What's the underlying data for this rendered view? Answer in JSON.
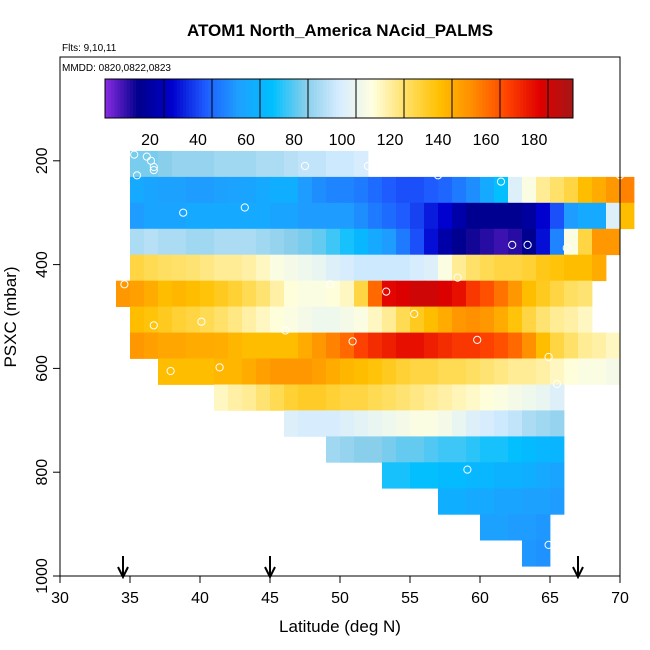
{
  "chart_data": {
    "type": "heatmap",
    "title": "ATOM1 North_America NAcid_PALMS",
    "flights_label": "Flts: 9,10,11",
    "dates_label": "MMDD: 0820,0822,0823",
    "xlabel": "Latitude (deg N)",
    "ylabel": "PSXC (mbar)",
    "xlim": [
      30,
      70
    ],
    "ylim": [
      1000,
      0
    ],
    "x_ticks": [
      30,
      35,
      40,
      45,
      50,
      55,
      60,
      65,
      70
    ],
    "y_ticks": [
      200,
      400,
      600,
      800,
      1000
    ],
    "colorbar": {
      "range": [
        0,
        195
      ],
      "ticks": [
        20,
        40,
        60,
        80,
        100,
        120,
        140,
        160,
        180
      ],
      "colors": [
        "#8a2be2",
        "#00008b",
        "#0000cd",
        "#1e5bff",
        "#1ea0ff",
        "#00bfff",
        "#87ceeb",
        "#d6ecff",
        "#ffffe0",
        "#ffe066",
        "#ffc000",
        "#ff8c00",
        "#ff4500",
        "#e00000",
        "#a51616"
      ]
    },
    "markers_latitude": [
      34.5,
      45,
      67
    ],
    "cell_size": {
      "lat": 1,
      "pressure": 50
    },
    "rows": [
      {
        "pressure": 200,
        "lat_start": 35,
        "values": [
          82,
          82,
          84,
          86,
          86,
          86,
          88,
          88,
          88,
          90,
          90,
          92,
          94,
          94,
          96,
          96,
          98
        ]
      },
      {
        "pressure": 250,
        "lat_start": 35,
        "values": [
          60,
          58,
          56,
          56,
          55,
          55,
          56,
          57,
          58,
          60,
          62,
          62,
          55,
          52,
          50,
          50,
          48,
          45,
          42,
          40,
          40,
          42,
          44,
          48,
          52,
          60,
          70,
          100,
          110,
          120,
          125,
          130,
          140,
          145,
          150,
          155
        ]
      },
      {
        "pressure": 300,
        "lat_start": 35,
        "values": [
          55,
          58,
          58,
          58,
          60,
          60,
          60,
          60,
          60,
          60,
          58,
          58,
          55,
          55,
          55,
          55,
          52,
          48,
          45,
          42,
          38,
          32,
          28,
          20,
          15,
          15,
          15,
          15,
          18,
          28,
          40,
          55,
          60,
          60,
          100,
          140
        ]
      },
      {
        "pressure": 350,
        "lat_start": 35,
        "values": [
          90,
          92,
          90,
          90,
          88,
          88,
          90,
          90,
          90,
          88,
          86,
          84,
          82,
          80,
          76,
          72,
          66,
          60,
          55,
          48,
          40,
          30,
          20,
          15,
          12,
          10,
          8,
          10,
          15,
          30,
          50,
          110,
          130,
          150,
          150
        ]
      },
      {
        "pressure": 400,
        "lat_start": 35,
        "values": [
          130,
          128,
          126,
          125,
          124,
          122,
          120,
          120,
          118,
          115,
          110,
          108,
          106,
          104,
          100,
          98,
          96,
          96,
          96,
          96,
          98,
          100,
          110,
          120,
          125,
          128,
          130,
          130,
          132,
          136,
          138,
          140,
          140,
          145
        ]
      },
      {
        "pressure": 450,
        "lat_start": 34,
        "values": [
          150,
          148,
          145,
          140,
          142,
          140,
          138,
          135,
          132,
          128,
          124,
          118,
          112,
          110,
          110,
          112,
          115,
          130,
          160,
          180,
          182,
          185,
          185,
          182,
          178,
          170,
          165,
          158,
          150,
          140,
          135,
          130,
          126,
          124
        ]
      },
      {
        "pressure": 500,
        "lat_start": 35,
        "values": [
          140,
          138,
          135,
          132,
          130,
          128,
          125,
          122,
          118,
          115,
          112,
          110,
          108,
          106,
          106,
          108,
          110,
          115,
          120,
          128,
          135,
          140,
          145,
          150,
          152,
          150,
          145,
          138,
          130,
          124,
          120,
          118,
          115
        ]
      },
      {
        "pressure": 550,
        "lat_start": 35,
        "values": [
          150,
          148,
          146,
          146,
          145,
          145,
          144,
          142,
          140,
          140,
          140,
          140,
          145,
          150,
          155,
          160,
          168,
          172,
          175,
          178,
          178,
          175,
          172,
          170,
          170,
          168,
          165,
          160,
          152,
          140,
          130,
          125,
          120,
          118,
          115
        ]
      },
      {
        "pressure": 600,
        "lat_start": 37,
        "values": [
          140,
          140,
          140,
          140,
          142,
          142,
          145,
          148,
          150,
          150,
          150,
          148,
          145,
          142,
          140,
          138,
          135,
          132,
          130,
          130,
          128,
          128,
          126,
          124,
          122,
          120,
          120,
          118,
          115,
          112,
          110,
          110,
          108
        ]
      },
      {
        "pressure": 650,
        "lat_start": 41,
        "values": [
          115,
          118,
          120,
          124,
          128,
          132,
          134,
          134,
          132,
          130,
          130,
          128,
          126,
          124,
          122,
          120,
          118,
          116,
          114,
          112,
          110,
          108,
          106,
          104,
          100
        ]
      },
      {
        "pressure": 700,
        "lat_start": 46,
        "values": [
          100,
          98,
          98,
          98,
          100,
          102,
          104,
          106,
          108,
          110,
          110,
          108,
          104,
          100,
          98,
          96,
          94,
          90,
          88,
          86
        ]
      },
      {
        "pressure": 750,
        "lat_start": 49,
        "values": [
          88,
          86,
          84,
          84,
          82,
          80,
          80,
          78,
          76,
          76,
          74,
          72,
          72,
          70,
          68,
          66,
          65
        ]
      },
      {
        "pressure": 800,
        "lat_start": 53,
        "values": [
          72,
          72,
          70,
          70,
          68,
          68,
          66,
          66,
          64,
          64,
          62,
          60,
          58
        ]
      },
      {
        "pressure": 850,
        "lat_start": 57,
        "values": [
          62,
          62,
          60,
          60,
          58,
          58,
          56,
          56,
          55
        ]
      },
      {
        "pressure": 900,
        "lat_start": 60,
        "values": [
          56,
          56,
          55,
          55,
          54
        ]
      },
      {
        "pressure": 950,
        "lat_start": 63,
        "values": [
          54,
          53
        ]
      }
    ],
    "points": [
      {
        "lat": 35.3,
        "p": 188
      },
      {
        "lat": 36.2,
        "p": 192
      },
      {
        "lat": 36.5,
        "p": 200
      },
      {
        "lat": 36.7,
        "p": 212
      },
      {
        "lat": 36.7,
        "p": 218
      },
      {
        "lat": 35.5,
        "p": 228
      },
      {
        "lat": 47.5,
        "p": 210
      },
      {
        "lat": 52,
        "p": 210
      },
      {
        "lat": 57,
        "p": 228
      },
      {
        "lat": 61.5,
        "p": 240
      },
      {
        "lat": 70,
        "p": 228
      },
      {
        "lat": 38.8,
        "p": 300
      },
      {
        "lat": 43.2,
        "p": 290
      },
      {
        "lat": 62.3,
        "p": 362
      },
      {
        "lat": 63.4,
        "p": 362
      },
      {
        "lat": 66.2,
        "p": 368
      },
      {
        "lat": 34.6,
        "p": 438
      },
      {
        "lat": 49.3,
        "p": 438
      },
      {
        "lat": 53.3,
        "p": 452
      },
      {
        "lat": 58.4,
        "p": 425
      },
      {
        "lat": 55.3,
        "p": 495
      },
      {
        "lat": 36.7,
        "p": 517
      },
      {
        "lat": 40.1,
        "p": 510
      },
      {
        "lat": 46.1,
        "p": 527
      },
      {
        "lat": 50.9,
        "p": 548
      },
      {
        "lat": 59.8,
        "p": 545
      },
      {
        "lat": 37.9,
        "p": 605
      },
      {
        "lat": 41.4,
        "p": 598
      },
      {
        "lat": 64.9,
        "p": 578
      },
      {
        "lat": 65.5,
        "p": 630
      },
      {
        "lat": 59.1,
        "p": 795
      },
      {
        "lat": 64.9,
        "p": 940
      }
    ]
  }
}
